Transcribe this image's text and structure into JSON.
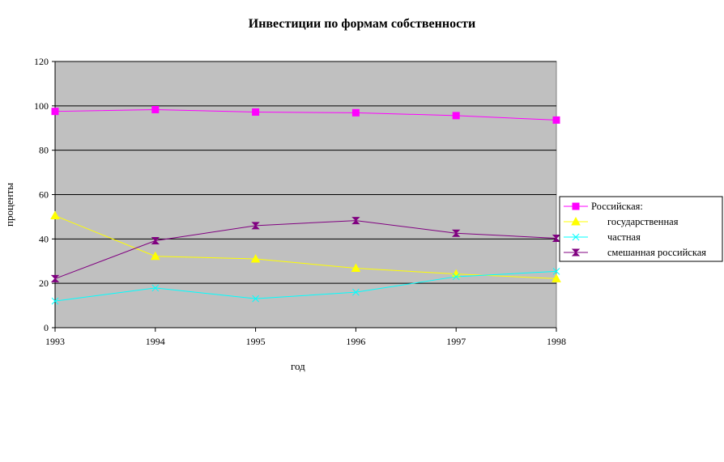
{
  "chart_data": {
    "type": "line",
    "title": "Инвестиции по формам собственности",
    "xlabel": "год",
    "ylabel": "проценты",
    "x": [
      "1993",
      "1994",
      "1995",
      "1996",
      "1997",
      "1998"
    ],
    "ylim": [
      0,
      120
    ],
    "yticks": [
      0,
      20,
      40,
      60,
      80,
      100,
      120
    ],
    "grid": true,
    "legend_position": "right",
    "plot_background": "#C0C0C0",
    "series": [
      {
        "name": "Российская:",
        "values": [
          97.5,
          98.3,
          97.2,
          96.9,
          95.6,
          93.6
        ],
        "color": "#FF00FF",
        "marker": "square"
      },
      {
        "name": "государственная",
        "values": [
          50.5,
          32.2,
          31.0,
          26.8,
          24.2,
          22.1
        ],
        "color": "#FFFF00",
        "marker": "triangle"
      },
      {
        "name": "частная",
        "values": [
          12.0,
          17.9,
          13.1,
          16.0,
          23.0,
          25.4
        ],
        "color": "#00FFFF",
        "marker": "bowtie"
      },
      {
        "name": "смешанная российская",
        "values": [
          22.1,
          39.2,
          46.0,
          48.3,
          42.6,
          40.3
        ],
        "color": "#800080",
        "marker": "hourglass"
      }
    ]
  }
}
